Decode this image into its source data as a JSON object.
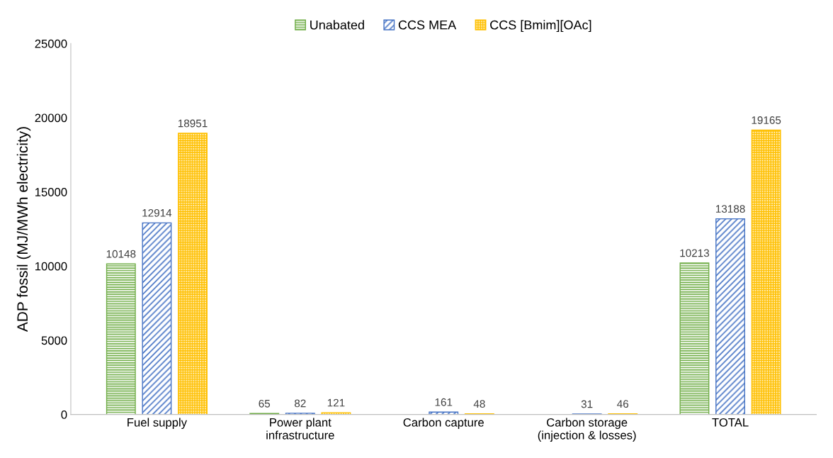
{
  "chart_data": {
    "type": "bar",
    "ylabel": "ADP fossil (MJ/MWh electricity)",
    "categories": [
      "Fuel supply",
      "Power plant\ninfrastructure",
      "Carbon capture",
      "Carbon storage\n(injection & losses)",
      "TOTAL"
    ],
    "series": [
      {
        "name": "Unabated",
        "color": "#70ad47",
        "values": [
          10148,
          65,
          null,
          null,
          10213
        ]
      },
      {
        "name": "CCS MEA",
        "color": "#4472c4",
        "values": [
          12914,
          82,
          161,
          31,
          13188
        ]
      },
      {
        "name": "CCS [Bmim][OAc]",
        "color": "#ffc000",
        "values": [
          18951,
          121,
          48,
          46,
          19165
        ]
      }
    ],
    "ylim": [
      0,
      25000
    ],
    "yticks": [
      0,
      5000,
      10000,
      15000,
      20000,
      25000
    ],
    "data_labels": true,
    "grid": false,
    "legend": "top"
  }
}
